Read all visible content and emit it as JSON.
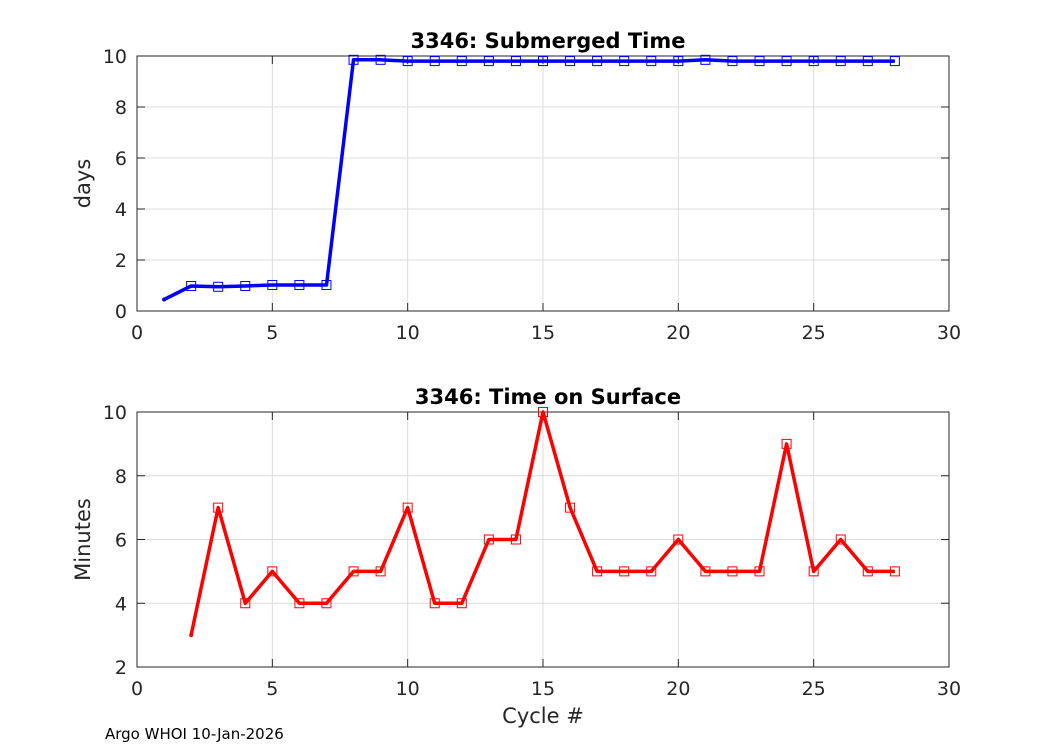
{
  "footer": {
    "text": "Argo WHOI 10-Jan-2026"
  },
  "chart_data": [
    {
      "type": "line",
      "title": "3346: Submerged Time",
      "xlabel": "",
      "ylabel": "days",
      "xlim": [
        0,
        30
      ],
      "ylim": [
        0,
        10
      ],
      "xticks": [
        0,
        5,
        10,
        15,
        20,
        25,
        30
      ],
      "yticks": [
        0,
        2,
        4,
        6,
        8,
        10
      ],
      "grid": true,
      "color": "#0000ff",
      "marker": "square",
      "x": [
        1,
        2,
        3,
        4,
        5,
        6,
        7,
        8,
        9,
        10,
        11,
        12,
        13,
        14,
        15,
        16,
        17,
        18,
        19,
        20,
        21,
        22,
        23,
        24,
        25,
        26,
        27,
        28
      ],
      "y": [
        0.45,
        0.98,
        0.95,
        0.98,
        1.02,
        1.02,
        1.02,
        9.85,
        9.85,
        9.8,
        9.8,
        9.8,
        9.8,
        9.8,
        9.8,
        9.8,
        9.8,
        9.8,
        9.8,
        9.8,
        9.85,
        9.8,
        9.8,
        9.8,
        9.8,
        9.8,
        9.8,
        9.8
      ]
    },
    {
      "type": "line",
      "title": "3346: Time on Surface",
      "xlabel": "Cycle #",
      "ylabel": "Minutes",
      "xlim": [
        0,
        30
      ],
      "ylim": [
        2,
        10
      ],
      "xticks": [
        0,
        5,
        10,
        15,
        20,
        25,
        30
      ],
      "yticks": [
        2,
        4,
        6,
        8,
        10
      ],
      "grid": true,
      "color": "#ff0000",
      "marker": "square",
      "x": [
        2,
        3,
        4,
        5,
        6,
        7,
        8,
        9,
        10,
        11,
        12,
        13,
        14,
        15,
        16,
        17,
        18,
        19,
        20,
        21,
        22,
        23,
        24,
        25,
        26,
        27,
        28
      ],
      "y": [
        3,
        7,
        4,
        5,
        4,
        4,
        5,
        5,
        7,
        4,
        4,
        6,
        6,
        10,
        7,
        5,
        5,
        5,
        6,
        5,
        5,
        5,
        9,
        5,
        6,
        5,
        5
      ]
    }
  ]
}
